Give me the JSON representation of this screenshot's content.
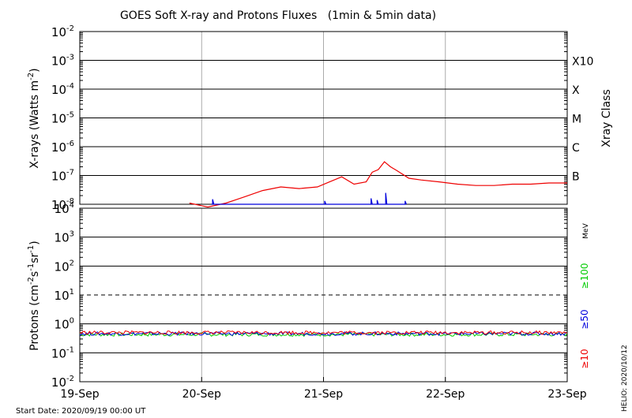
{
  "title": "GOES Soft X-ray and Protons Fluxes   (1min & 5min data)",
  "start_date": "Start Date: 2020/09/19 00:00 UT",
  "side_credit": "HELIO: 2020/10/12",
  "colors": {
    "xray_long": "#ee0000",
    "xray_short": "#0000dd",
    "p10": "#ee0000",
    "p50": "#0000dd",
    "p100": "#00cc00",
    "grid": "#000000",
    "vgrid": "#aaaaaa"
  },
  "chart_data": [
    {
      "type": "line",
      "panel": "xray",
      "ylabel_main": "X-rays (Watts m",
      "ylabel_sup": "-2",
      "ylabel_end": ")",
      "yscale": "log",
      "ylim": [
        1e-08,
        0.01
      ],
      "y_tick_labels": [
        {
          "base": "10",
          "exp": "-8"
        },
        {
          "base": "10",
          "exp": "-7"
        },
        {
          "base": "10",
          "exp": "-6"
        },
        {
          "base": "10",
          "exp": "-5"
        },
        {
          "base": "10",
          "exp": "-4"
        },
        {
          "base": "10",
          "exp": "-3"
        },
        {
          "base": "10",
          "exp": "-2"
        }
      ],
      "right_axis_title": "Xray Class",
      "class_labels": [
        "B",
        "C",
        "M",
        "X",
        "X10"
      ],
      "xlim_days": [
        0,
        4
      ],
      "series": [
        {
          "key": "long",
          "x": [
            0.9,
            1.05,
            1.2,
            1.35,
            1.5,
            1.65,
            1.8,
            1.95,
            2.05,
            2.15,
            2.25,
            2.35,
            2.4,
            2.45,
            2.5,
            2.55,
            2.6,
            2.7,
            2.8,
            2.95,
            3.1,
            3.25,
            3.4,
            3.55,
            3.7,
            3.85,
            4.0
          ],
          "y": [
            1.1e-08,
            8e-09,
            1.1e-08,
            1.8e-08,
            3e-08,
            4e-08,
            3.5e-08,
            4e-08,
            6e-08,
            9e-08,
            5e-08,
            6e-08,
            1.3e-07,
            1.6e-07,
            3e-07,
            2e-07,
            1.5e-07,
            8e-08,
            7e-08,
            6e-08,
            5e-08,
            4.5e-08,
            4.5e-08,
            5e-08,
            5e-08,
            5.5e-08,
            5.5e-08
          ]
        },
        {
          "key": "short",
          "x": [
            1.08,
            1.09,
            1.09,
            1.1,
            2.0,
            2.01,
            2.01,
            2.02,
            2.38,
            2.39,
            2.39,
            2.4,
            2.43,
            2.44,
            2.44,
            2.45,
            2.5,
            2.51,
            2.51,
            2.52,
            2.66,
            2.67,
            2.67,
            2.68
          ],
          "y": [
            1e-08,
            1e-08,
            1.5e-08,
            1e-08,
            1e-08,
            1e-08,
            1.3e-08,
            1e-08,
            1e-08,
            1e-08,
            1.6e-08,
            1e-08,
            1e-08,
            1e-08,
            1.4e-08,
            1e-08,
            1e-08,
            1e-08,
            2.5e-08,
            1e-08,
            1e-08,
            1e-08,
            1.3e-08,
            1e-08
          ]
        }
      ]
    },
    {
      "type": "line",
      "panel": "protons",
      "ylabel_main": "Protons (cm",
      "ylabel_parts": [
        {
          "t": "-2",
          "sup": true
        },
        {
          "t": "s",
          "sup": false
        },
        {
          "t": "-1",
          "sup": true
        },
        {
          "t": "sr",
          "sup": false
        },
        {
          "t": "-1",
          "sup": true
        },
        {
          "t": ")",
          "sup": false
        }
      ],
      "yscale": "log",
      "ylim": [
        0.01,
        10000
      ],
      "y_tick_labels": [
        {
          "base": "10",
          "exp": "-2"
        },
        {
          "base": "10",
          "exp": "-1"
        },
        {
          "base": "10",
          "exp": "0"
        },
        {
          "base": "10",
          "exp": "1"
        },
        {
          "base": "10",
          "exp": "2"
        },
        {
          "base": "10",
          "exp": "3"
        },
        {
          "base": "10",
          "exp": "4"
        }
      ],
      "threshold": 10,
      "energy_unit": "MeV",
      "energy_labels": [
        {
          "text": "≥100",
          "key": "p100"
        },
        {
          "text": "≥50",
          "key": "p50"
        },
        {
          "text": "≥10",
          "key": "p10"
        }
      ],
      "series": [
        {
          "key": "p100",
          "level": 0.43
        },
        {
          "key": "p50",
          "level": 0.46
        },
        {
          "key": "p10",
          "level": 0.5
        }
      ],
      "xlim_days": [
        0,
        4
      ],
      "x_tick_labels": [
        "19-Sep",
        "20-Sep",
        "21-Sep",
        "22-Sep",
        "23-Sep"
      ]
    }
  ]
}
